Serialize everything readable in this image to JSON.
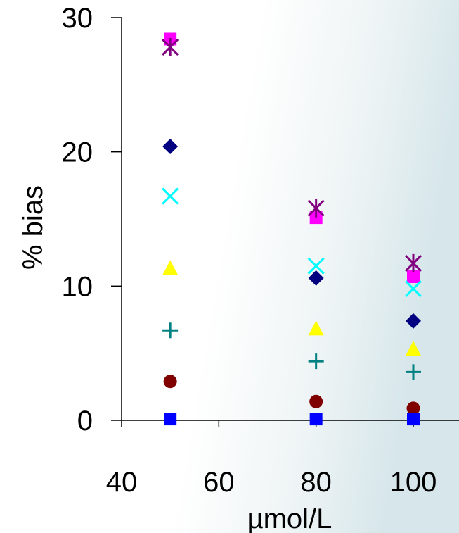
{
  "chart_data": {
    "type": "scatter",
    "title": "",
    "xlabel": "µmol/L",
    "ylabel": "% bias",
    "xlim": [
      40,
      100
    ],
    "ylim": [
      0,
      30
    ],
    "x_ticks": [
      "40",
      "60",
      "80",
      "100"
    ],
    "y_ticks": [
      "0",
      "10",
      "20",
      "30"
    ],
    "grid": false,
    "legend": "none",
    "x": [
      50,
      80,
      100
    ],
    "series": [
      {
        "marker": "square",
        "color": "#ff00ff",
        "values": [
          28.4,
          15.1,
          10.7
        ]
      },
      {
        "marker": "star",
        "color": "#800080",
        "values": [
          27.8,
          15.8,
          11.7
        ]
      },
      {
        "marker": "diamond",
        "color": "#000080",
        "values": [
          20.4,
          10.6,
          7.4
        ]
      },
      {
        "marker": "x",
        "color": "#00ffff",
        "values": [
          16.7,
          11.5,
          9.8
        ]
      },
      {
        "marker": "triangle",
        "color": "#ffff00",
        "values": [
          11.3,
          6.8,
          5.3
        ]
      },
      {
        "marker": "plus",
        "color": "#008080",
        "values": [
          6.7,
          4.4,
          3.6
        ]
      },
      {
        "marker": "circle",
        "color": "#800000",
        "values": [
          2.9,
          1.4,
          0.9
        ]
      },
      {
        "marker": "square",
        "color": "#0000ff",
        "values": [
          0.1,
          0.1,
          0.1
        ]
      }
    ]
  }
}
